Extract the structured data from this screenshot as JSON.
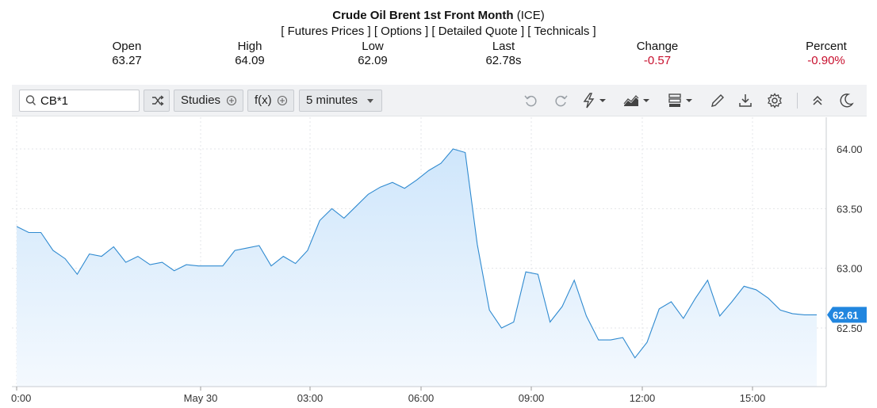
{
  "header": {
    "title_bold": "Crude Oil Brent 1st Front Month",
    "title_suffix": " (ICE)",
    "links": [
      "[ Futures Prices ]",
      "[ Options ]",
      "[ Detailed Quote ]",
      "[ Technicals ]"
    ]
  },
  "stats": [
    {
      "label": "Open",
      "value": "63.27",
      "negative": false
    },
    {
      "label": "High",
      "value": "64.09",
      "negative": false
    },
    {
      "label": "Low",
      "value": "62.09",
      "negative": false
    },
    {
      "label": "Last",
      "value": "62.78s",
      "negative": false
    },
    {
      "label": "Change",
      "value": "-0.57",
      "negative": true
    },
    {
      "label": "Percent",
      "value": "-0.90%",
      "negative": true
    }
  ],
  "toolbar": {
    "search_value": "CB*1",
    "studies_label": "Studies",
    "fx_label": "f(x)",
    "interval_label": "5 minutes",
    "icons": [
      "undo-icon",
      "redo-icon",
      "flash-icon",
      "chart-type-icon",
      "bars-icon",
      "pencil-icon",
      "download-icon",
      "settings-icon",
      "collapse-icon",
      "dark-mode-icon"
    ]
  },
  "colors": {
    "line": "#2f8ad0",
    "fill_top": "#cfe6fb",
    "fill_bottom": "#f4f9fe",
    "price_tag": "#2186df",
    "negative": "#c8102e"
  },
  "chart_data": {
    "type": "area",
    "x_ticks": [
      "0:00",
      "May 30",
      "03:00",
      "06:00",
      "09:00",
      "12:00",
      "15:00"
    ],
    "y_ticks": [
      "64.00",
      "63.50",
      "63.00",
      "62.50"
    ],
    "ylim": [
      62.0,
      64.2
    ],
    "grid": true,
    "current_price_label": "62.61",
    "current_price": 62.61,
    "x": [
      0,
      0.25,
      0.5,
      0.75,
      1,
      1.25,
      1.5,
      1.75,
      2,
      2.25,
      2.5,
      2.75,
      3,
      3.25,
      3.5,
      3.75,
      4,
      4.25,
      4.5,
      4.75,
      5,
      5.25,
      5.5,
      5.75,
      6,
      6.25,
      6.5,
      6.75,
      7,
      7.25,
      7.5,
      7.75,
      8,
      8.25,
      8.5,
      8.75,
      9,
      9.25,
      9.5,
      9.75,
      10,
      10.25,
      10.5,
      10.75,
      11,
      11.25,
      11.5,
      11.75,
      12,
      12.25,
      12.5,
      12.75,
      13,
      13.25,
      13.5,
      13.75,
      14,
      14.25,
      14.5,
      14.75,
      15,
      15.25,
      15.5,
      15.75,
      16,
      16.25,
      16.5
    ],
    "y": [
      63.35,
      63.3,
      63.3,
      63.15,
      63.08,
      62.95,
      63.12,
      63.1,
      63.18,
      63.05,
      63.1,
      63.03,
      63.05,
      62.98,
      63.03,
      63.02,
      63.02,
      63.02,
      63.15,
      63.17,
      63.19,
      63.02,
      63.1,
      63.04,
      63.15,
      63.4,
      63.5,
      63.42,
      63.52,
      63.62,
      63.68,
      63.72,
      63.67,
      63.74,
      63.82,
      63.88,
      64.0,
      63.97,
      63.2,
      62.65,
      62.5,
      62.55,
      62.97,
      62.95,
      62.55,
      62.68,
      62.9,
      62.6,
      62.4,
      62.4,
      62.42,
      62.25,
      62.38,
      62.66,
      62.72,
      62.58,
      62.75,
      62.9,
      62.6,
      62.72,
      62.85,
      62.82,
      62.75,
      62.65,
      62.62,
      62.61,
      62.61
    ]
  }
}
